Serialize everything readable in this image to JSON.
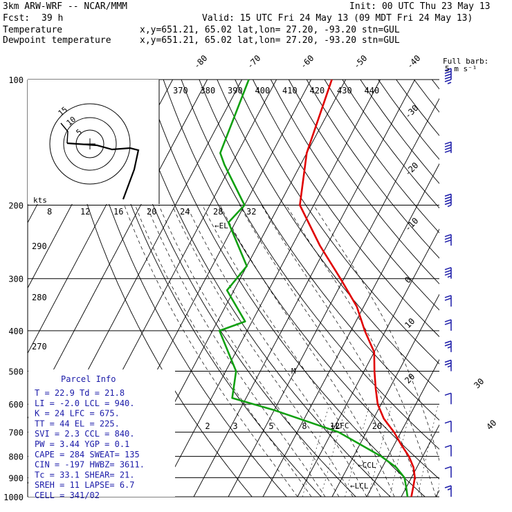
{
  "header": {
    "model": "3km ARW-WRF -- NCAR/MMM",
    "init": "Init: 00 UTC Thu 23 May 13",
    "fcst_label": "Fcst:",
    "fcst_value": "39 h",
    "valid": "Valid: 15 UTC Fri 24 May 13 (09 MDT Fri 24 May 13)",
    "temp_label": "Temperature",
    "temp_info": "x,y=651.21, 65.02   lat,lon= 27.20, -93.20  stn=GUL",
    "dew_label": "Dewpoint temperature",
    "dew_info": "x,y=651.21, 65.02   lat,lon= 27.20, -93.20  stn=GUL"
  },
  "colors": {
    "temperature": "#e00000",
    "dewpoint": "#10a010",
    "barbs": "#1a1aa8",
    "hodograph": "#000000"
  },
  "barb_legend": {
    "line1": "Full barb:",
    "line2": "5 m s⁻¹"
  },
  "hodo": {
    "kts": "kts",
    "ring_labels": [
      "5",
      "10",
      "15"
    ]
  },
  "labels": {
    "el": "←EL",
    "lfc": "←LFC",
    "ccl": "←CCL",
    "lcl": "←LCL",
    "m": "M"
  },
  "parcel_info": {
    "title": "Parcel Info",
    "rows": [
      "T  =    22.9  Td =  21.8",
      "LI =    -2.0  LCL =  940.",
      "K  =      24  LFC =  675.",
      "TT =      44  EL  =  225.",
      "SVI =    2.3  CCL =  840.",
      "PW =    3.44  YGP =   0.1",
      "CAPE =   284  SWEAT=  135",
      "CIN =   -197  HWBZ= 3611.",
      "Tc =    33.1  SHEAR=  21.",
      "SREH =    11  LAPSE=  6.7",
      "CELL = 341/02"
    ]
  },
  "chart_data": {
    "type": "line",
    "title": "",
    "y_axis": "Pressure (hPa), log scale",
    "pressure_levels": [
      100,
      200,
      300,
      400,
      500,
      600,
      700,
      800,
      900,
      1000
    ],
    "isotherm_labels_top": [
      "-80",
      "-70",
      "-60",
      "-50",
      "-40"
    ],
    "isotherm_labels_right": [
      "-30",
      "-20",
      "-10",
      "0",
      "10",
      "20",
      "30",
      "40"
    ],
    "theta_labels": [
      "370",
      "380",
      "390",
      "400",
      "410",
      "420",
      "430",
      "440"
    ],
    "theta_labels_left": [
      "290",
      "280",
      "270"
    ],
    "mixing_ratio_upper": [
      "8",
      "12",
      "16",
      "20",
      "24",
      "28",
      "32"
    ],
    "mixing_ratio_lower": [
      "2",
      "3",
      "5",
      "8",
      "12",
      "20"
    ],
    "series": [
      {
        "name": "Temperature",
        "points": [
          [
            100,
            -64
          ],
          [
            150,
            -60
          ],
          [
            200,
            -54
          ],
          [
            250,
            -42
          ],
          [
            300,
            -31
          ],
          [
            350,
            -22
          ],
          [
            400,
            -16
          ],
          [
            450,
            -10
          ],
          [
            500,
            -7
          ],
          [
            550,
            -4
          ],
          [
            600,
            -1
          ],
          [
            650,
            3
          ],
          [
            700,
            8
          ],
          [
            750,
            12
          ],
          [
            800,
            16
          ],
          [
            850,
            19
          ],
          [
            900,
            21
          ],
          [
            950,
            22
          ],
          [
            1000,
            22.9
          ]
        ]
      },
      {
        "name": "Dewpoint temperature",
        "points": [
          [
            100,
            -88
          ],
          [
            150,
            -85
          ],
          [
            160,
            -82
          ],
          [
            200,
            -70
          ],
          [
            220,
            -72
          ],
          [
            280,
            -60
          ],
          [
            320,
            -62
          ],
          [
            380,
            -52
          ],
          [
            400,
            -58
          ],
          [
            500,
            -47
          ],
          [
            580,
            -44
          ],
          [
            620,
            -30
          ],
          [
            700,
            -8
          ],
          [
            800,
            8
          ],
          [
            850,
            14
          ],
          [
            900,
            18
          ],
          [
            950,
            20
          ],
          [
            1000,
            21.8
          ]
        ]
      }
    ],
    "wind_barbs_kt": [
      {
        "p": 100,
        "speed": 45
      },
      {
        "p": 150,
        "speed": 40
      },
      {
        "p": 200,
        "speed": 35
      },
      {
        "p": 250,
        "speed": 30
      },
      {
        "p": 300,
        "speed": 25
      },
      {
        "p": 350,
        "speed": 20
      },
      {
        "p": 400,
        "speed": 20
      },
      {
        "p": 450,
        "speed": 15
      },
      {
        "p": 500,
        "speed": 15
      },
      {
        "p": 600,
        "speed": 10
      },
      {
        "p": 700,
        "speed": 10
      },
      {
        "p": 800,
        "speed": 10
      },
      {
        "p": 900,
        "speed": 10
      },
      {
        "p": 1000,
        "speed": 5
      }
    ],
    "hodograph_points": [
      [
        0,
        0
      ],
      [
        -5,
        -1
      ],
      [
        -15,
        -3
      ],
      [
        -22,
        -3
      ],
      [
        -20,
        -12
      ],
      [
        -25,
        -30
      ],
      [
        -30,
        -45
      ]
    ]
  }
}
